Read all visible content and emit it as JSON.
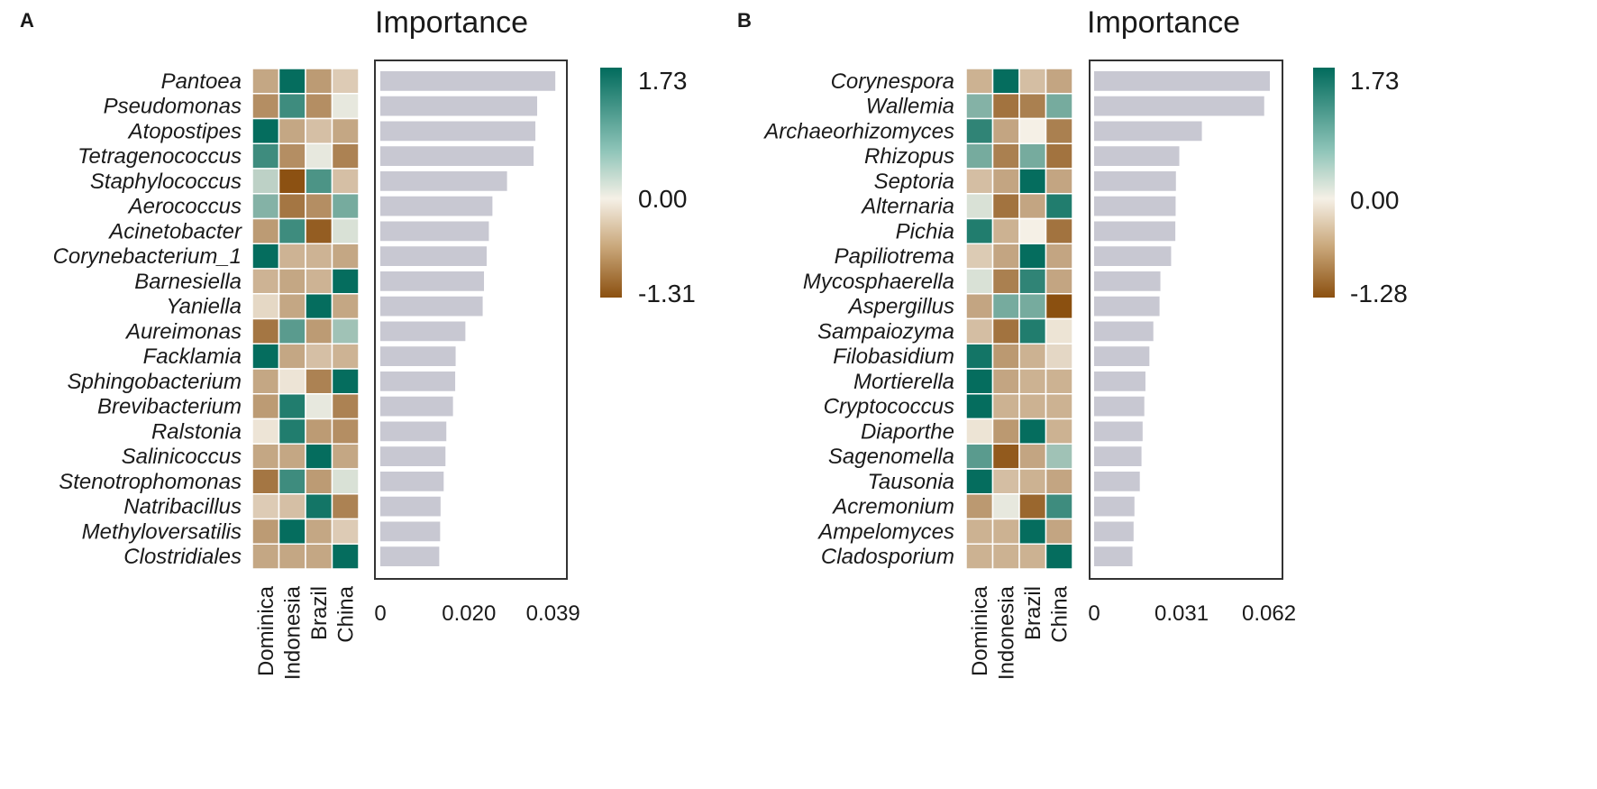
{
  "colors": {
    "bar": "#c8c8d2",
    "frame": "#333333",
    "low": "#8b5010",
    "mid": "#f5f0e6",
    "high": "#016b5c"
  },
  "chart_data": [
    {
      "panel": "A",
      "type": "heatmap+bar",
      "title": "Importance",
      "countries": [
        "Dominica",
        "Indonesia",
        "Brazil",
        "China"
      ],
      "xlim": [
        0,
        0.0415
      ],
      "x_ticks": [
        "0",
        "0.020",
        "0.039"
      ],
      "x_tick_values": [
        0,
        0.02,
        0.039
      ],
      "colorbar": {
        "max": 1.73,
        "mid": 0.0,
        "min": -1.31,
        "labels": [
          "1.73",
          "0.00",
          "-1.31"
        ]
      },
      "rows": [
        {
          "label": "Pantoea",
          "importance": 0.0395,
          "z": [
            -0.6,
            1.7,
            -0.7,
            -0.3
          ]
        },
        {
          "label": "Pseudomonas",
          "importance": 0.0354,
          "z": [
            -0.8,
            1.3,
            -0.8,
            0.1
          ]
        },
        {
          "label": "Atopostipes",
          "importance": 0.035,
          "z": [
            1.7,
            -0.6,
            -0.4,
            -0.6
          ]
        },
        {
          "label": "Tetragenococcus",
          "importance": 0.0346,
          "z": [
            1.3,
            -0.8,
            0.1,
            -0.9
          ]
        },
        {
          "label": "Staphylococcus",
          "importance": 0.0286,
          "z": [
            0.4,
            -1.3,
            1.2,
            -0.4
          ]
        },
        {
          "label": "Aerococcus",
          "importance": 0.0253,
          "z": [
            0.8,
            -1.0,
            -0.8,
            0.9
          ]
        },
        {
          "label": "Acinetobacter",
          "importance": 0.0245,
          "z": [
            -0.7,
            1.3,
            -1.2,
            0.2
          ]
        },
        {
          "label": "Corynebacterium_1",
          "importance": 0.024,
          "z": [
            1.7,
            -0.5,
            -0.5,
            -0.6
          ]
        },
        {
          "label": "Barnesiella",
          "importance": 0.0234,
          "z": [
            -0.5,
            -0.6,
            -0.5,
            1.7
          ]
        },
        {
          "label": "Yaniella",
          "importance": 0.0231,
          "z": [
            -0.2,
            -0.6,
            1.7,
            -0.6
          ]
        },
        {
          "label": "Aureimonas",
          "importance": 0.0192,
          "z": [
            -1.0,
            1.1,
            -0.7,
            0.6
          ]
        },
        {
          "label": "Facklamia",
          "importance": 0.017,
          "z": [
            1.7,
            -0.6,
            -0.4,
            -0.5
          ]
        },
        {
          "label": "Sphingobacterium",
          "importance": 0.0169,
          "z": [
            -0.6,
            -0.1,
            -0.9,
            1.7
          ]
        },
        {
          "label": "Brevibacterium",
          "importance": 0.0164,
          "z": [
            -0.7,
            1.5,
            0.1,
            -0.9
          ]
        },
        {
          "label": "Ralstonia",
          "importance": 0.0149,
          "z": [
            -0.1,
            1.5,
            -0.7,
            -0.8
          ]
        },
        {
          "label": "Salinicoccus",
          "importance": 0.0147,
          "z": [
            -0.6,
            -0.6,
            1.7,
            -0.6
          ]
        },
        {
          "label": "Stenotrophomonas",
          "importance": 0.0143,
          "z": [
            -1.0,
            1.3,
            -0.7,
            0.2
          ]
        },
        {
          "label": "Natribacillus",
          "importance": 0.0136,
          "z": [
            -0.3,
            -0.4,
            1.6,
            -0.9
          ]
        },
        {
          "label": "Methyloversatilis",
          "importance": 0.0135,
          "z": [
            -0.7,
            1.7,
            -0.6,
            -0.3
          ]
        },
        {
          "label": "Clostridiales",
          "importance": 0.0133,
          "z": [
            -0.6,
            -0.6,
            -0.6,
            1.7
          ]
        }
      ]
    },
    {
      "panel": "B",
      "type": "heatmap+bar",
      "title": "Importance",
      "countries": [
        "Dominica",
        "Indonesia",
        "Brazil",
        "China"
      ],
      "xlim": [
        0,
        0.0655
      ],
      "x_ticks": [
        "0",
        "0.031",
        "0.062"
      ],
      "x_tick_values": [
        0,
        0.031,
        0.062
      ],
      "colorbar": {
        "max": 1.73,
        "mid": 0.0,
        "min": -1.28,
        "labels": [
          "1.73",
          "0.00",
          "-1.28"
        ]
      },
      "rows": [
        {
          "label": "Corynespora",
          "importance": 0.0623,
          "z": [
            -0.5,
            1.7,
            -0.4,
            -0.6
          ]
        },
        {
          "label": "Wallemia",
          "importance": 0.0603,
          "z": [
            0.8,
            -1.0,
            -0.9,
            0.9
          ]
        },
        {
          "label": "Archaeorhizomyces",
          "importance": 0.0382,
          "z": [
            1.4,
            -0.6,
            0.0,
            -0.9
          ]
        },
        {
          "label": "Rhizopus",
          "importance": 0.0302,
          "z": [
            0.9,
            -0.9,
            0.9,
            -1.0
          ]
        },
        {
          "label": "Septoria",
          "importance": 0.029,
          "z": [
            -0.4,
            -0.6,
            1.7,
            -0.6
          ]
        },
        {
          "label": "Alternaria",
          "importance": 0.0289,
          "z": [
            0.2,
            -1.0,
            -0.6,
            1.5
          ]
        },
        {
          "label": "Pichia",
          "importance": 0.0288,
          "z": [
            1.5,
            -0.5,
            0.0,
            -1.0
          ]
        },
        {
          "label": "Papiliotrema",
          "importance": 0.0273,
          "z": [
            -0.3,
            -0.6,
            1.7,
            -0.6
          ]
        },
        {
          "label": "Mycosphaerella",
          "importance": 0.0235,
          "z": [
            0.2,
            -0.9,
            1.4,
            -0.6
          ]
        },
        {
          "label": "Aspergillus",
          "importance": 0.0232,
          "z": [
            -0.6,
            0.9,
            0.9,
            -1.3
          ]
        },
        {
          "label": "Sampaiozyma",
          "importance": 0.021,
          "z": [
            -0.4,
            -1.0,
            1.5,
            -0.1
          ]
        },
        {
          "label": "Filobasidium",
          "importance": 0.0196,
          "z": [
            1.6,
            -0.7,
            -0.5,
            -0.2
          ]
        },
        {
          "label": "Mortierella",
          "importance": 0.0182,
          "z": [
            1.7,
            -0.6,
            -0.5,
            -0.5
          ]
        },
        {
          "label": "Cryptococcus",
          "importance": 0.0178,
          "z": [
            1.7,
            -0.5,
            -0.5,
            -0.5
          ]
        },
        {
          "label": "Diaporthe",
          "importance": 0.0172,
          "z": [
            -0.1,
            -0.7,
            1.7,
            -0.5
          ]
        },
        {
          "label": "Sagenomella",
          "importance": 0.0168,
          "z": [
            1.1,
            -1.2,
            -0.6,
            0.6
          ]
        },
        {
          "label": "Tausonia",
          "importance": 0.0162,
          "z": [
            1.7,
            -0.4,
            -0.5,
            -0.6
          ]
        },
        {
          "label": "Acremonium",
          "importance": 0.0143,
          "z": [
            -0.7,
            0.1,
            -1.1,
            1.3
          ]
        },
        {
          "label": "Ampelomyces",
          "importance": 0.014,
          "z": [
            -0.5,
            -0.5,
            1.7,
            -0.6
          ]
        },
        {
          "label": "Cladosporium",
          "importance": 0.0136,
          "z": [
            -0.5,
            -0.5,
            -0.5,
            1.7
          ]
        }
      ]
    }
  ]
}
